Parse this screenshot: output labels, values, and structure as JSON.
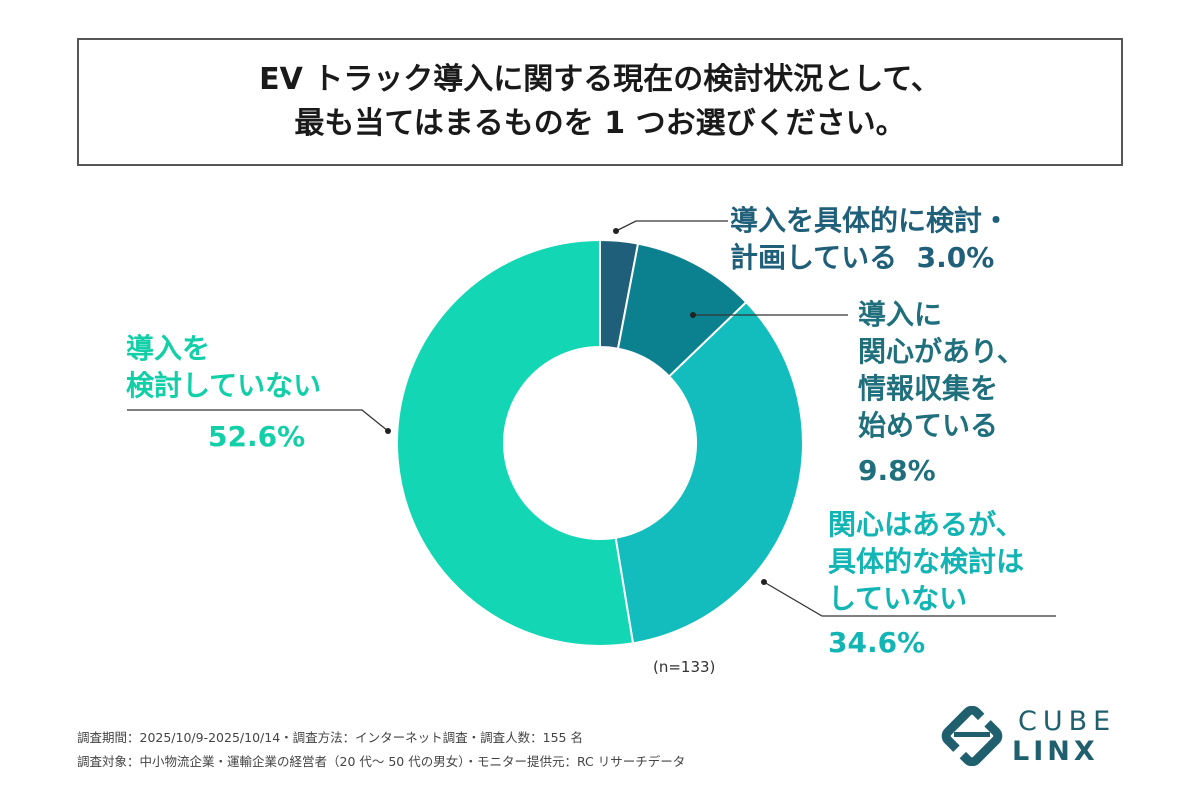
{
  "title": {
    "line1": "EV トラック導入に関する現在の検討状況として、",
    "line2": "最も当てはまるものを 1 つお選びください。"
  },
  "chart_data": {
    "type": "pie",
    "donut": true,
    "categories": [
      "導入を具体的に検討・計画している",
      "導入に関心があり、情報収集を始めている",
      "関心はあるが、具体的な検討はしていない",
      "導入を検討していない"
    ],
    "values": [
      3.0,
      9.8,
      34.6,
      52.6
    ],
    "value_labels": [
      "3.0%",
      "9.8%",
      "34.6%",
      "52.6%"
    ],
    "colors": [
      "#1f5f7a",
      "#0b8190",
      "#14bdbd",
      "#12d6b4"
    ],
    "label_colors": [
      "#1f5f7a",
      "#1f6f7d",
      "#12b4b4",
      "#12cfa8"
    ],
    "label_lines": [
      [
        "導入を具体的に検討・",
        "計画している"
      ],
      [
        "導入に",
        "関心があり、",
        "情報収集を",
        "始めている"
      ],
      [
        "関心はあるが、",
        "具体的な検討は",
        "していない"
      ],
      [
        "導入を",
        "検討していない"
      ]
    ],
    "n_note": "(n=133)"
  },
  "footer": {
    "line1": "調査期間：2025/10/9-2025/10/14・調査方法：インターネット調査・調査人数：155 名",
    "line2": "調査対象：中小物流企業・運輸企業の経営者（20 代～ 50 代の男女）・モニター提供元：RC リサーチデータ"
  },
  "logo": {
    "text_top": "CUBE",
    "text_bottom": "LINX",
    "color": "#1f5f6e"
  }
}
